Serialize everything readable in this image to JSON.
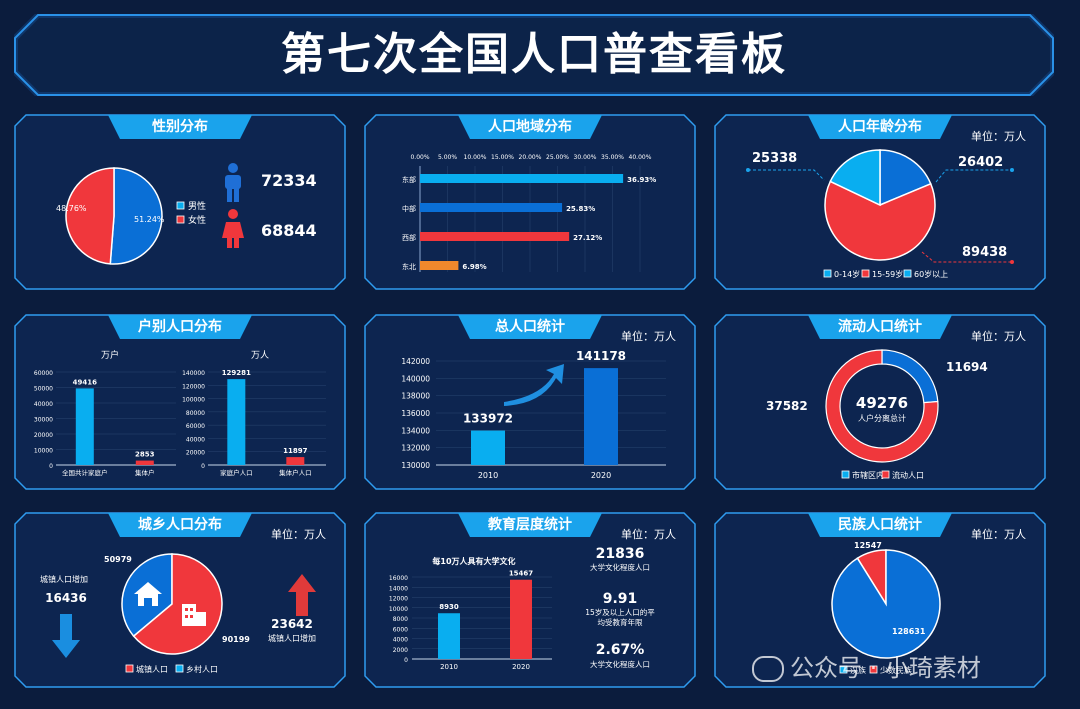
{
  "title": "第七次全国人口普查看板",
  "unit_label": "单位：万人",
  "colors": {
    "blue": "#0a6fd6",
    "cyan": "#09aef0",
    "red": "#f0373c",
    "orange": "#f0882c",
    "bg": "#0b1c3d"
  },
  "panels": {
    "gender": {
      "title": "性别分布",
      "legend": [
        "男性",
        "女性"
      ],
      "male_value": "72334",
      "female_value": "68844",
      "icons": [
        "male-person-icon",
        "female-person-icon"
      ],
      "chart_data": {
        "type": "pie",
        "labels": [
          "男性",
          "女性"
        ],
        "values": [
          51.24,
          48.76
        ],
        "value_labels": [
          "51.24%",
          "48.76%"
        ]
      }
    },
    "region": {
      "title": "人口地域分布",
      "chart_data": {
        "type": "bar",
        "orientation": "horizontal",
        "categories": [
          "东部",
          "中部",
          "西部",
          "东北"
        ],
        "values": [
          36.93,
          25.83,
          27.12,
          6.98
        ],
        "value_labels": [
          "36.93%",
          "25.83%",
          "27.12%",
          "6.98%"
        ],
        "xlim": [
          0,
          40
        ],
        "ticks": [
          "0.00%",
          "5.00%",
          "10.00%",
          "15.00%",
          "20.00%",
          "25.00%",
          "30.00%",
          "35.00%",
          "40.00%"
        ]
      }
    },
    "age": {
      "title": "人口年龄分布",
      "values_text": [
        "25338",
        "89438",
        "26402"
      ],
      "chart_data": {
        "type": "pie",
        "labels": [
          "0-14岁",
          "15-59岁",
          "60岁以上"
        ],
        "values": [
          25338,
          89438,
          26402
        ]
      }
    },
    "household": {
      "title": "户别人口分布",
      "left": {
        "unit": "万户",
        "chart_data": {
          "type": "bar",
          "categories": [
            "全国共计家庭户",
            "集体户"
          ],
          "values": [
            49416,
            2853
          ],
          "value_labels": [
            "49416",
            "2853"
          ],
          "ylim": [
            0,
            60000
          ],
          "ticks": [
            "60000",
            "50000",
            "40000",
            "30000",
            "20000",
            "10000",
            "0"
          ]
        }
      },
      "right": {
        "unit": "万人",
        "chart_data": {
          "type": "bar",
          "categories": [
            "家庭户人口",
            "集体户人口"
          ],
          "values": [
            129281,
            11897
          ],
          "value_labels": [
            "129281",
            "11897"
          ],
          "ylim": [
            0,
            140000
          ],
          "ticks": [
            "140000",
            "120000",
            "100000",
            "80000",
            "60000",
            "40000",
            "20000",
            "0"
          ]
        }
      }
    },
    "total": {
      "title": "总人口统计",
      "chart_data": {
        "type": "bar",
        "categories": [
          "2010",
          "2020"
        ],
        "values": [
          133972,
          141178
        ],
        "value_labels": [
          "133972",
          "141178"
        ],
        "ylim": [
          130000,
          142000
        ],
        "ticks": [
          "142000",
          "140000",
          "138000",
          "136000",
          "134000",
          "132000",
          "130000"
        ]
      }
    },
    "floating": {
      "title": "流动人口统计",
      "center_value": "49276",
      "center_label": "人户分离总计",
      "values_text": [
        "11694",
        "37582"
      ],
      "chart_data": {
        "type": "pie",
        "donut": true,
        "labels": [
          "市辖区内",
          "流动人口"
        ],
        "values": [
          11694,
          37582
        ]
      }
    },
    "urban": {
      "title": "城乡人口分布",
      "decrease_label": "城镇人口增加",
      "decrease_value": "16436",
      "increase_label": "城镇人口增加",
      "increase_value": "23642",
      "values_text": [
        "90199",
        "50979"
      ],
      "icons": [
        "house-icon",
        "building-icon"
      ],
      "chart_data": {
        "type": "pie",
        "labels": [
          "城镇人口",
          "乡村人口"
        ],
        "values": [
          90199,
          50979
        ]
      }
    },
    "education": {
      "title": "教育层度统计",
      "chart_title": "每10万人具有大学文化",
      "stats": [
        {
          "value": "21836",
          "label": "大学文化程度人口"
        },
        {
          "value": "9.91",
          "label": "15岁及以上人口的平均受教育年限"
        },
        {
          "value": "2.67%",
          "label": "大学文化程度人口"
        }
      ],
      "chart_data": {
        "type": "bar",
        "categories": [
          "2010",
          "2020"
        ],
        "values": [
          8930,
          15467
        ],
        "value_labels": [
          "8930",
          "15467"
        ],
        "ylim": [
          0,
          16000
        ],
        "ticks": [
          "16000",
          "14000",
          "12000",
          "10000",
          "8000",
          "6000",
          "4000",
          "2000",
          "0"
        ]
      }
    },
    "ethnic": {
      "title": "民族人口统计",
      "values_text": [
        "128631",
        "12547"
      ],
      "chart_data": {
        "type": "pie",
        "labels": [
          "汉族",
          "少数民族"
        ],
        "values": [
          128631,
          12547
        ]
      }
    }
  },
  "watermark": "公众号 · 小琦素材"
}
